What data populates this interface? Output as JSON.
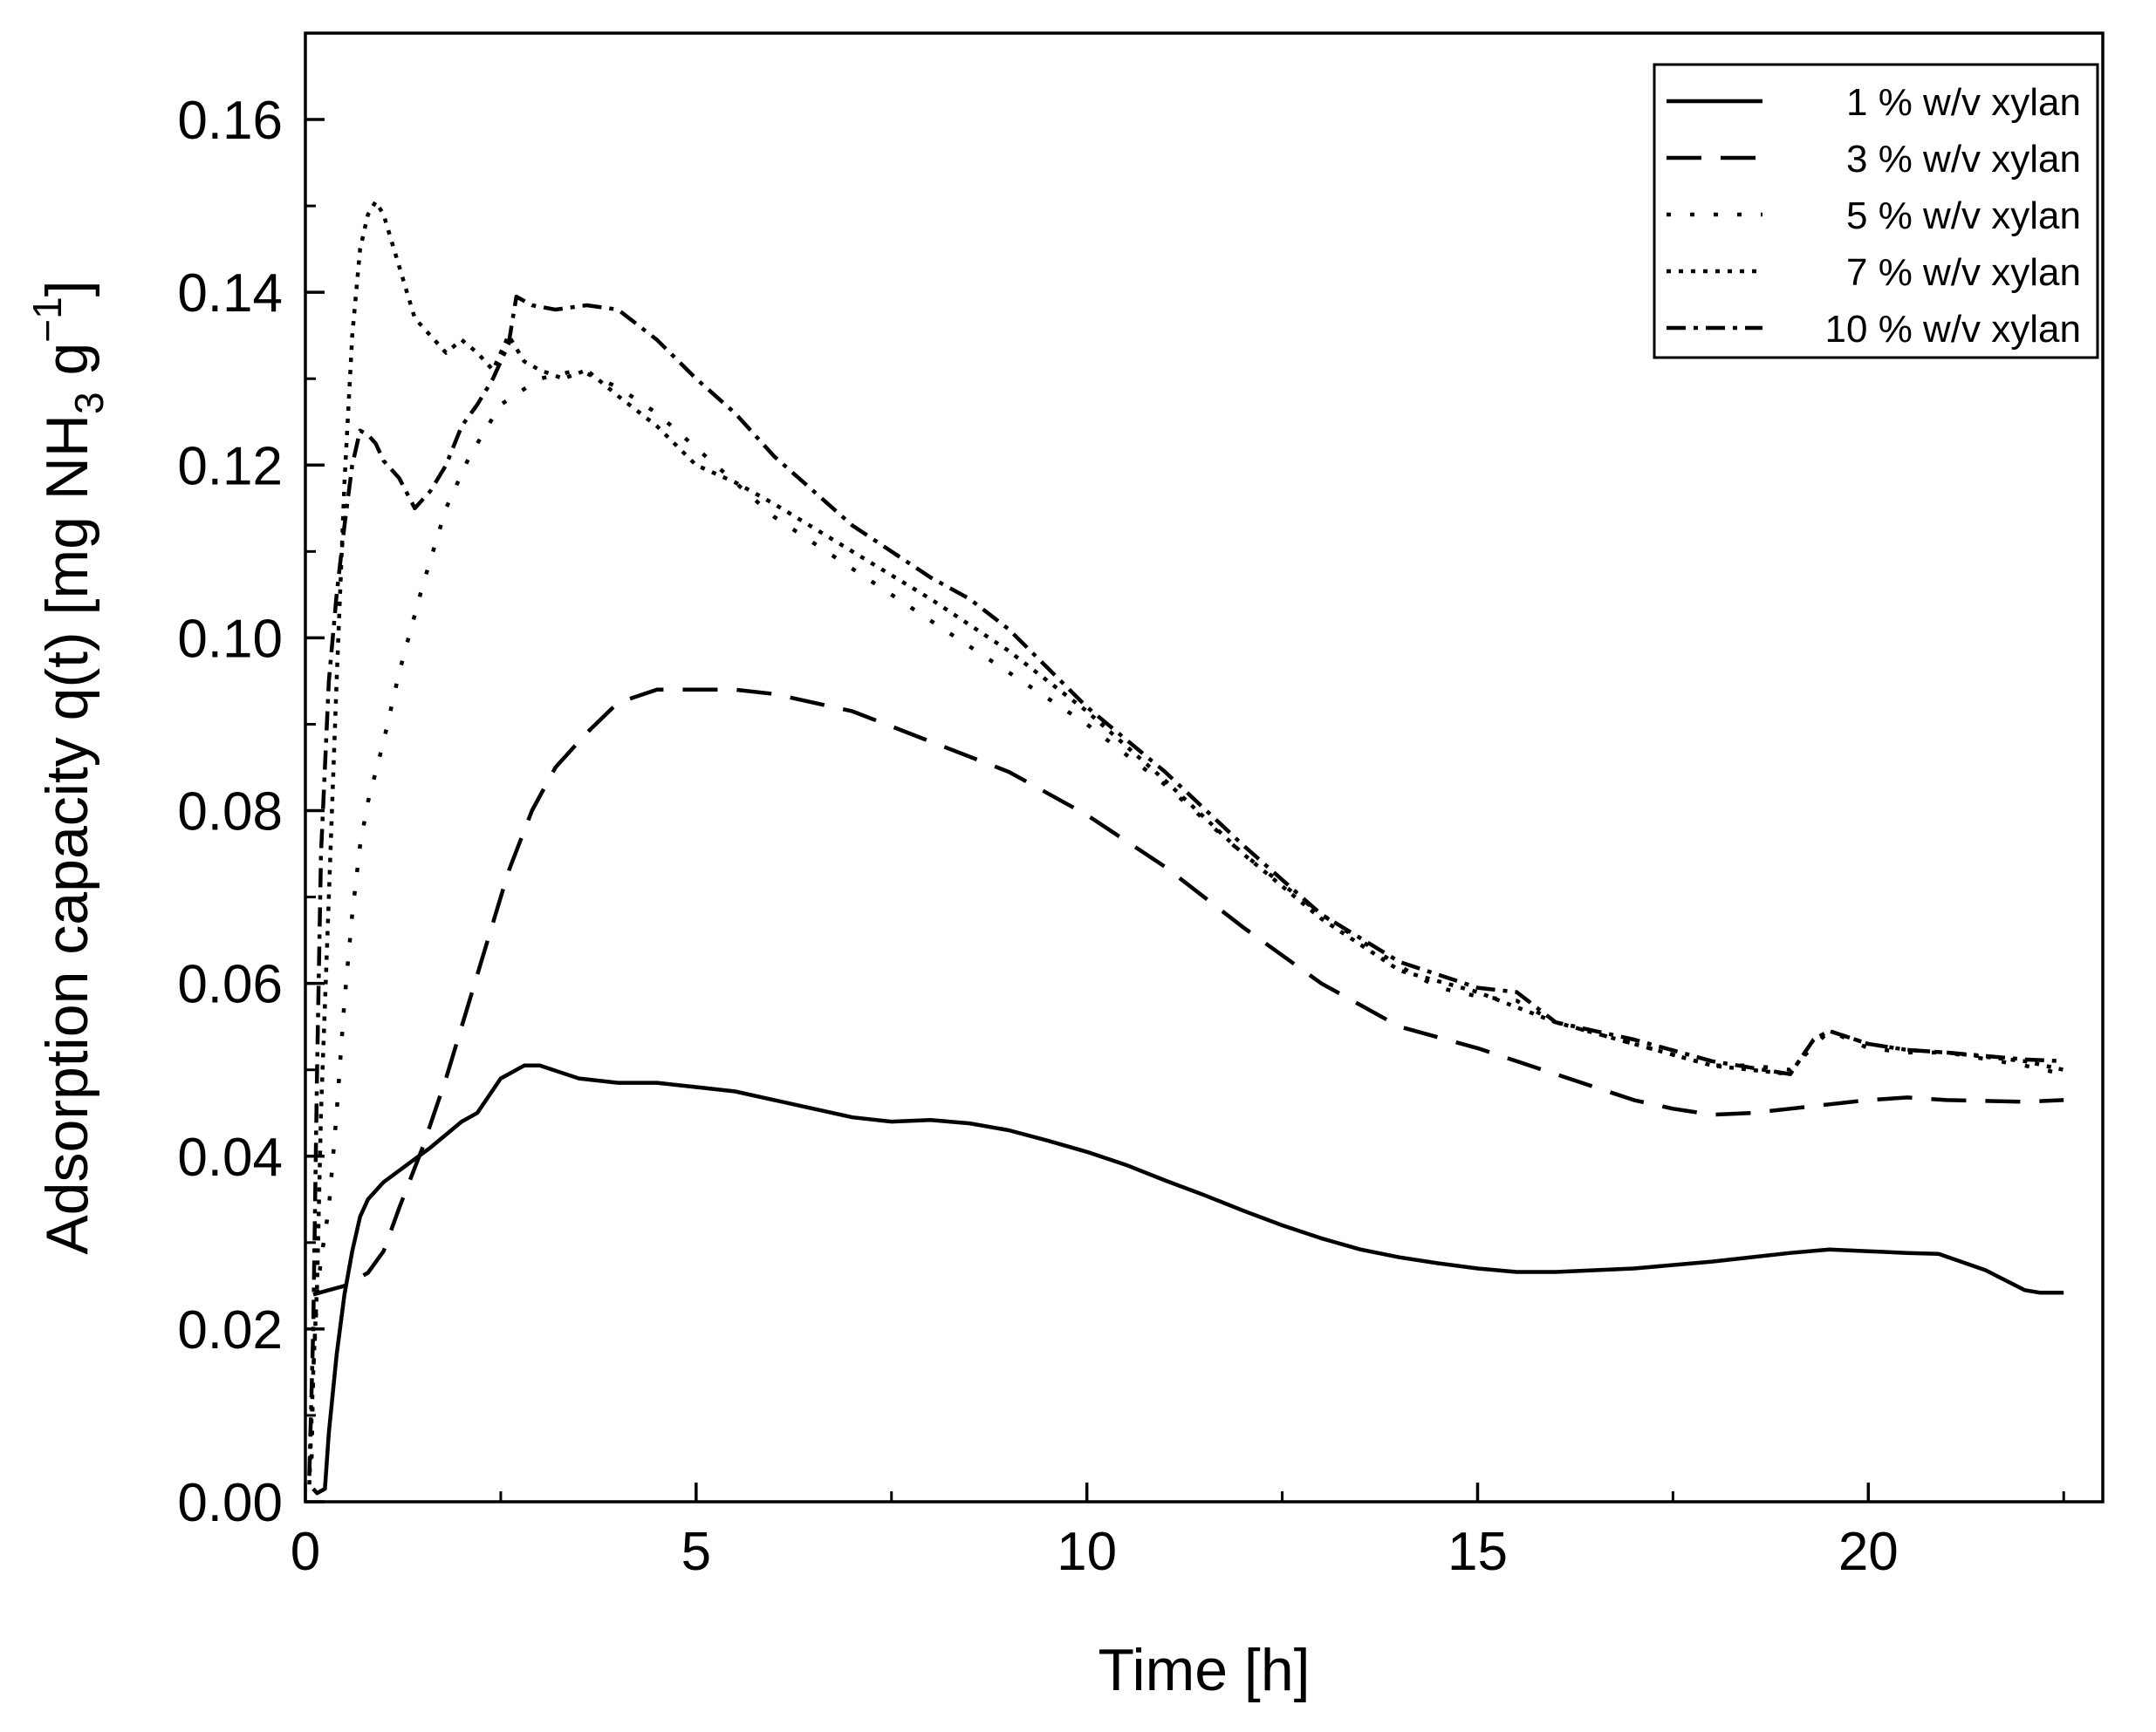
{
  "chart_data": {
    "type": "line",
    "title": "",
    "xlabel": "Time [h]",
    "ylabel": {
      "main": "Adsorption capacity q(t) [mg NH",
      "sub": "3",
      "mid": " g",
      "sup": "−1",
      "end": "]"
    },
    "xlim": [
      0,
      23
    ],
    "ylim": [
      0,
      0.17
    ],
    "xticks": [
      0,
      5,
      10,
      15,
      20
    ],
    "xtick_labels": [
      "0",
      "5",
      "10",
      "15",
      "20"
    ],
    "yticks": [
      0,
      0.02,
      0.04,
      0.06,
      0.08,
      0.1,
      0.12,
      0.14,
      0.16
    ],
    "ytick_labels": [
      "0.00",
      "0.02",
      "0.04",
      "0.06",
      "0.08",
      "0.10",
      "0.12",
      "0.14",
      "0.16"
    ],
    "grid": false,
    "legend_position": "top-right",
    "series": [
      {
        "name": "1 % w/v xylan",
        "dash": "solid",
        "x": [
          0.1,
          0.15,
          0.25,
          0.3,
          0.4,
          0.5,
          0.6,
          0.7,
          0.8,
          1.0,
          1.3,
          1.6,
          2.0,
          2.2,
          2.5,
          2.8,
          3.0,
          3.5,
          4.0,
          4.5,
          5.0,
          5.5,
          6.0,
          7.0,
          7.5,
          8.0,
          8.5,
          9.0,
          9.5,
          10.0,
          10.5,
          11.0,
          11.5,
          12.0,
          12.5,
          13.0,
          13.5,
          14.0,
          14.5,
          15.0,
          15.5,
          16.0,
          17.0,
          18.0,
          19.0,
          19.5,
          20.0,
          20.5,
          20.9,
          21.5,
          22.0,
          22.2,
          22.5
        ],
        "y": [
          0.0015,
          0.001,
          0.0015,
          0.008,
          0.017,
          0.024,
          0.029,
          0.033,
          0.035,
          0.037,
          0.039,
          0.041,
          0.044,
          0.045,
          0.049,
          0.0505,
          0.0505,
          0.049,
          0.0485,
          0.0485,
          0.048,
          0.0475,
          0.0465,
          0.0445,
          0.044,
          0.0442,
          0.0438,
          0.043,
          0.0418,
          0.0405,
          0.039,
          0.0372,
          0.0355,
          0.0337,
          0.032,
          0.0305,
          0.0292,
          0.0283,
          0.0276,
          0.027,
          0.0266,
          0.0266,
          0.027,
          0.0278,
          0.0288,
          0.0292,
          0.029,
          0.0288,
          0.0287,
          0.0268,
          0.0245,
          0.0242,
          0.0242
        ]
      },
      {
        "name": "3 % w/v xylan",
        "dash": "long",
        "x": [
          0.1,
          0.3,
          0.5,
          0.8,
          1.0,
          1.2,
          1.5,
          1.8,
          2.0,
          2.3,
          2.6,
          2.9,
          3.2,
          3.6,
          4.0,
          4.5,
          5.0,
          5.5,
          6.0,
          7.0,
          8.0,
          9.0,
          10.0,
          11.0,
          12.0,
          13.0,
          13.5,
          14.0,
          15.0,
          16.0,
          17.0,
          17.5,
          18.0,
          18.5,
          19.0,
          19.5,
          20.0,
          20.5,
          21.0,
          22.0,
          22.5
        ],
        "y": [
          0.024,
          0.0245,
          0.025,
          0.0265,
          0.029,
          0.034,
          0.041,
          0.049,
          0.055,
          0.064,
          0.073,
          0.08,
          0.085,
          0.089,
          0.0925,
          0.094,
          0.094,
          0.094,
          0.0935,
          0.0915,
          0.088,
          0.0845,
          0.0795,
          0.0735,
          0.0665,
          0.06,
          0.0575,
          0.055,
          0.0525,
          0.0495,
          0.0465,
          0.0455,
          0.0448,
          0.045,
          0.0455,
          0.046,
          0.0465,
          0.0468,
          0.0465,
          0.0463,
          0.0465
        ]
      },
      {
        "name": "5 % w/v xylan",
        "dash": "sparse-dot",
        "x": [
          0.08,
          0.1,
          0.15,
          0.2,
          0.3,
          0.4,
          0.5,
          0.6,
          0.7,
          0.8,
          1.0,
          1.2,
          1.5,
          1.8,
          2.1,
          2.5,
          3.0,
          3.5,
          4.0,
          4.5,
          5.0,
          6.0,
          7.0,
          8.0,
          9.0,
          10.0,
          11.0,
          12.0,
          13.0,
          14.0,
          14.5,
          15.0,
          15.5,
          16.0,
          17.0,
          18.0,
          18.5,
          19.0,
          19.5,
          20.0,
          20.5,
          21.0,
          22.0,
          22.5
        ],
        "y": [
          0.005,
          0.015,
          0.024,
          0.028,
          0.034,
          0.045,
          0.058,
          0.068,
          0.076,
          0.081,
          0.088,
          0.096,
          0.106,
          0.115,
          0.121,
          0.127,
          0.13,
          0.131,
          0.129,
          0.126,
          0.122,
          0.114,
          0.108,
          0.102,
          0.096,
          0.09,
          0.083,
          0.075,
          0.068,
          0.062,
          0.0595,
          0.0585,
          0.058,
          0.0555,
          0.053,
          0.0505,
          0.0505,
          0.05,
          0.0545,
          0.0525,
          0.052,
          0.052,
          0.0505,
          0.0495
        ]
      },
      {
        "name": "7 % w/v xylan",
        "dash": "dense-dot",
        "x": [
          0.05,
          0.1,
          0.15,
          0.2,
          0.3,
          0.4,
          0.5,
          0.6,
          0.7,
          0.8,
          0.9,
          1.0,
          1.2,
          1.4,
          1.6,
          1.8,
          2.0,
          2.2,
          2.4,
          2.6,
          2.8,
          3.0,
          3.3,
          3.6,
          4.0,
          4.5,
          5.0,
          5.5,
          6.0,
          7.0,
          8.0,
          9.0,
          10.0,
          11.0,
          12.0,
          13.0,
          14.0,
          15.0,
          16.0,
          17.0,
          18.0,
          19.0,
          19.3,
          19.5,
          20.0,
          20.5,
          21.0,
          22.0,
          22.5
        ],
        "y": [
          0.002,
          0.015,
          0.025,
          0.045,
          0.07,
          0.095,
          0.118,
          0.135,
          0.145,
          0.149,
          0.1505,
          0.149,
          0.143,
          0.137,
          0.135,
          0.133,
          0.1345,
          0.133,
          0.131,
          0.135,
          0.132,
          0.131,
          0.13,
          0.131,
          0.128,
          0.1245,
          0.12,
          0.118,
          0.1155,
          0.11,
          0.1045,
          0.0985,
          0.0915,
          0.0835,
          0.075,
          0.0675,
          0.0615,
          0.059,
          0.0555,
          0.053,
          0.0505,
          0.0495,
          0.0535,
          0.0545,
          0.053,
          0.0523,
          0.052,
          0.051,
          0.05
        ]
      },
      {
        "name": "10 % w/v xylan",
        "dash": "dash-dot",
        "x": [
          0.05,
          0.1,
          0.15,
          0.2,
          0.3,
          0.4,
          0.5,
          0.6,
          0.7,
          0.8,
          0.9,
          1.0,
          1.2,
          1.4,
          1.6,
          1.8,
          2.0,
          2.2,
          2.4,
          2.6,
          2.7,
          2.9,
          3.2,
          3.6,
          4.0,
          4.5,
          5.0,
          5.5,
          6.0,
          7.0,
          8.0,
          8.5,
          9.0,
          10.0,
          11.0,
          12.0,
          13.0,
          14.0,
          14.5,
          15.0,
          15.5,
          16.0,
          17.0,
          18.0,
          19.0,
          19.3,
          19.5,
          20.0,
          20.5,
          21.0,
          22.0,
          22.5
        ],
        "y": [
          0.003,
          0.02,
          0.05,
          0.075,
          0.095,
          0.105,
          0.113,
          0.12,
          0.124,
          0.1235,
          0.1225,
          0.1205,
          0.1185,
          0.115,
          0.117,
          0.12,
          0.1245,
          0.127,
          0.13,
          0.134,
          0.1395,
          0.1385,
          0.138,
          0.1385,
          0.138,
          0.1345,
          0.13,
          0.126,
          0.121,
          0.113,
          0.107,
          0.1045,
          0.101,
          0.092,
          0.0845,
          0.076,
          0.068,
          0.0625,
          0.061,
          0.0595,
          0.059,
          0.0555,
          0.0535,
          0.051,
          0.0495,
          0.0535,
          0.0545,
          0.053,
          0.0523,
          0.052,
          0.0512,
          0.051
        ]
      }
    ]
  }
}
